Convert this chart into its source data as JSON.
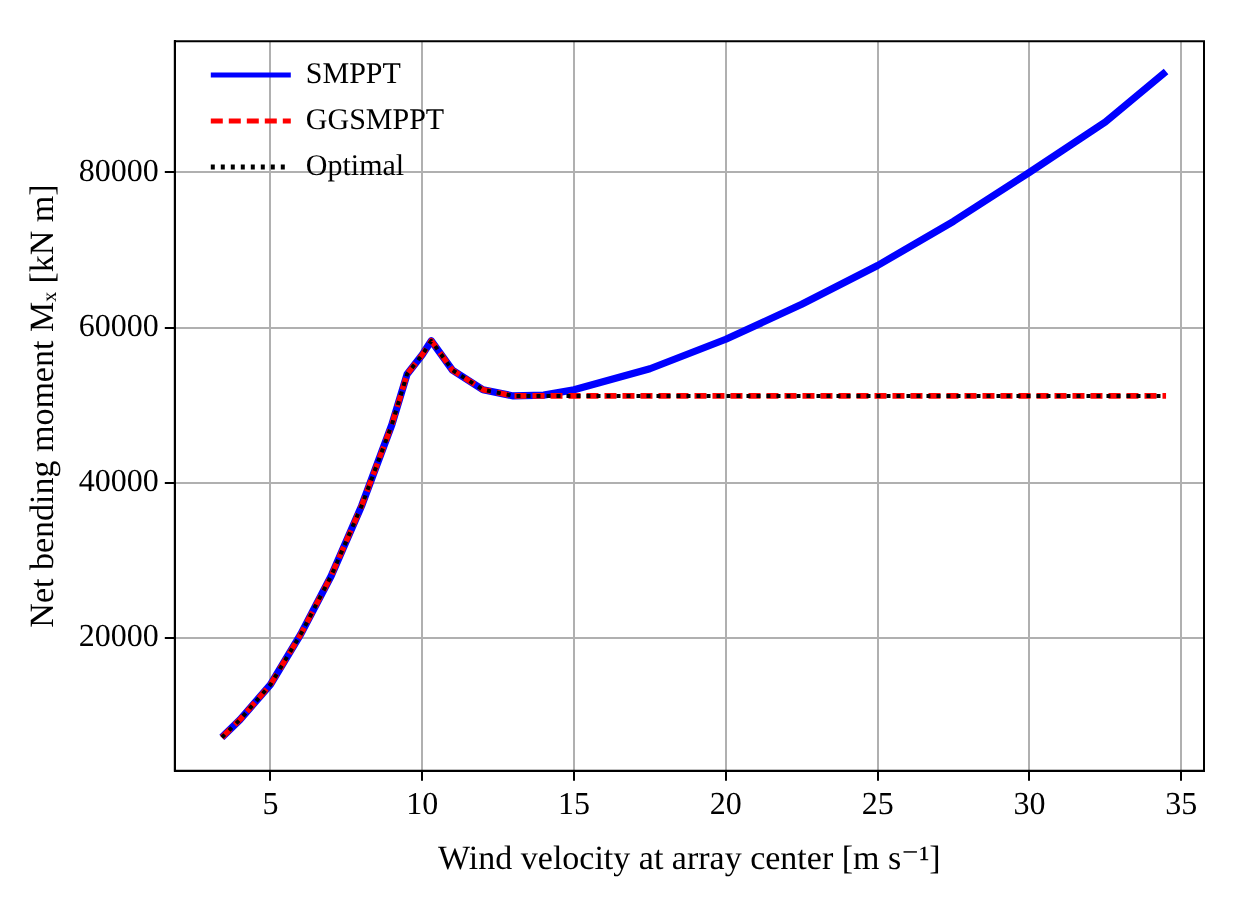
{
  "chart_data": {
    "type": "line",
    "xlabel": "Wind velocity at array center [m s⁻¹]",
    "ylabel": "Net bending moment Mₓ [kN m]",
    "xlim": [
      1.85,
      35.75
    ],
    "xticks": [
      5,
      10,
      15,
      20,
      25,
      30,
      35
    ],
    "ylim": [
      2900,
      96900
    ],
    "yticks": [
      20000,
      40000,
      60000,
      80000
    ],
    "grid": true,
    "legend": "top left",
    "marker": "none",
    "series": [
      {
        "name": "SMPPT",
        "color": "#0000ff",
        "line_style": "solid",
        "x": [
          3.4,
          4,
          5,
          6,
          7,
          8,
          9,
          9.5,
          10,
          10.3,
          11,
          12,
          13,
          14,
          15,
          17.5,
          20,
          22.5,
          25,
          27.5,
          30,
          32.5,
          34.5
        ],
        "values": [
          7200,
          9500,
          14000,
          20500,
          28000,
          37000,
          47500,
          54000,
          56500,
          58300,
          54500,
          52000,
          51200,
          51300,
          52000,
          54700,
          58500,
          63000,
          68000,
          73700,
          80000,
          86500,
          93000
        ]
      },
      {
        "name": "GGSMPPT",
        "color": "#ff0000",
        "line_style": "dashed",
        "x": [
          3.4,
          4,
          5,
          6,
          7,
          8,
          9,
          9.5,
          10,
          10.3,
          11,
          12,
          13,
          14,
          15,
          20,
          25,
          30,
          34.5
        ],
        "values": [
          7200,
          9500,
          14000,
          20500,
          28000,
          37000,
          47500,
          54000,
          56500,
          58300,
          54500,
          52000,
          51200,
          51200,
          51200,
          51200,
          51200,
          51200,
          51200
        ]
      },
      {
        "name": "Optimal",
        "color": "#000000",
        "line_style": "dotted",
        "x": [
          3.4,
          4,
          5,
          6,
          7,
          8,
          9,
          9.5,
          10,
          10.3,
          11,
          12,
          13,
          14,
          15,
          20,
          25,
          30,
          34.5
        ],
        "values": [
          7200,
          9500,
          14000,
          20500,
          28000,
          37000,
          47500,
          54000,
          56500,
          58300,
          54500,
          52000,
          51200,
          51200,
          51200,
          51200,
          51200,
          51200,
          51200
        ]
      }
    ]
  }
}
